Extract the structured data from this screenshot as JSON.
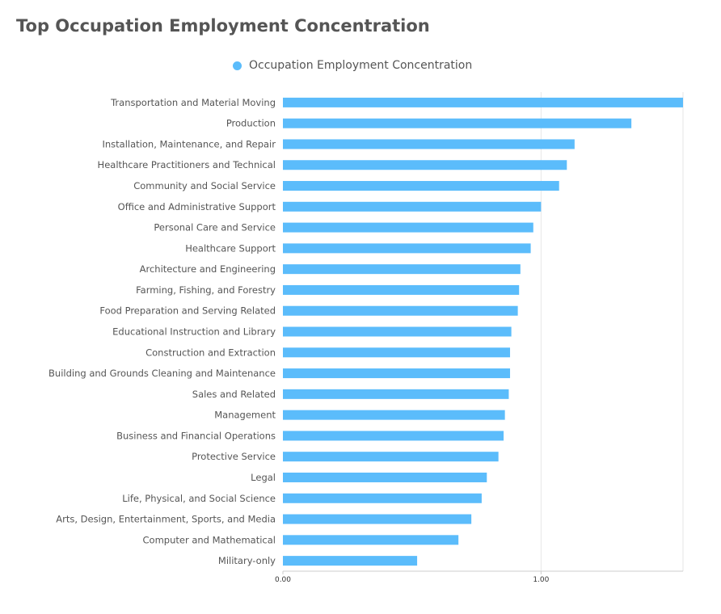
{
  "chart_data": {
    "type": "bar",
    "orientation": "horizontal",
    "title": "Top Occupation Employment Concentration",
    "legend_position": "top-center",
    "grid": true,
    "xlim": [
      0,
      1.55
    ],
    "x_ticks": [
      0,
      1
    ],
    "x_tick_labels": [
      "0.00",
      "1.00"
    ],
    "categories": [
      "Transportation and Material Moving",
      "Production",
      "Installation, Maintenance, and Repair",
      "Healthcare Practitioners and Technical",
      "Community and Social Service",
      "Office and Administrative Support",
      "Personal Care and Service",
      "Healthcare Support",
      "Architecture and Engineering",
      "Farming, Fishing, and Forestry",
      "Food Preparation and Serving Related",
      "Educational Instruction and Library",
      "Construction and Extraction",
      "Building and Grounds Cleaning and Maintenance",
      "Sales and Related",
      "Management",
      "Business and Financial Operations",
      "Protective Service",
      "Legal",
      "Life, Physical, and Social Science",
      "Arts, Design, Entertainment, Sports, and Media",
      "Computer and Mathematical",
      "Military-only"
    ],
    "series": [
      {
        "name": "Occupation Employment Concentration",
        "color": "#5bbcfb",
        "values": [
          1.55,
          1.35,
          1.13,
          1.1,
          1.07,
          1.0,
          0.97,
          0.96,
          0.92,
          0.915,
          0.91,
          0.885,
          0.88,
          0.88,
          0.875,
          0.86,
          0.855,
          0.835,
          0.79,
          0.77,
          0.73,
          0.68,
          0.52
        ]
      }
    ]
  },
  "colors": {
    "bar": "#5bbcfb",
    "title": "#555555",
    "text": "#555555",
    "grid": "#e6e6e6",
    "axis": "#cccccc"
  }
}
